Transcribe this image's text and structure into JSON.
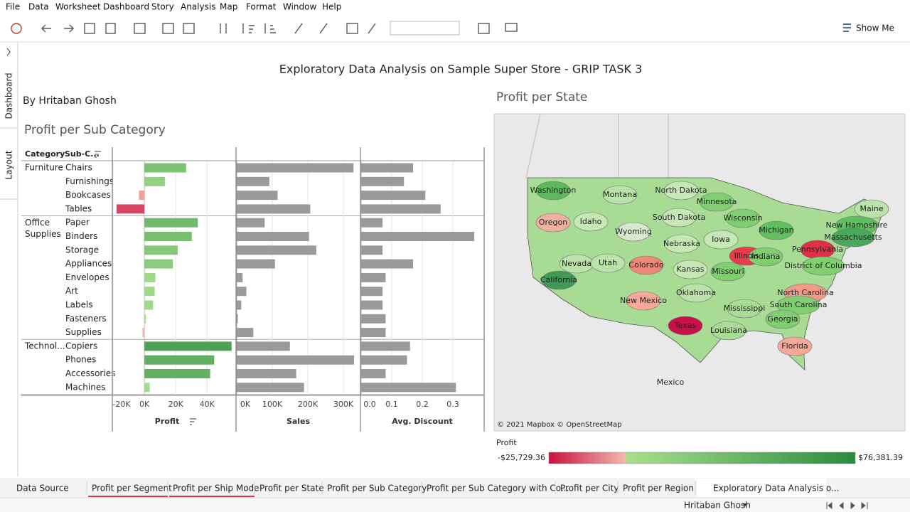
{
  "menu": [
    "File",
    "Data",
    "Worksheet",
    "Dashboard",
    "Story",
    "Analysis",
    "Map",
    "Format",
    "Window",
    "Help"
  ],
  "toolbar": {
    "show_me": "Show Me"
  },
  "side_tabs": [
    "Dashboard",
    "Layout"
  ],
  "dashboard": {
    "title": "Exploratory Data Analysis on Sample Super Store - GRIP TASK 3",
    "author": "By Hritaban Ghosh",
    "chart": {
      "type": "bar",
      "title": "Profit per Sub Category",
      "header": {
        "category": "Category",
        "sub_category": "Sub-C..."
      },
      "groups": [
        {
          "name": "Furniture",
          "sub_categories": [
            "Chairs",
            "Furnishings",
            "Bookcases",
            "Tables"
          ]
        },
        {
          "name": "Office Supplies",
          "sub_categories": [
            "Paper",
            "Binders",
            "Storage",
            "Appliances",
            "Envelopes",
            "Art",
            "Labels",
            "Fasteners",
            "Supplies"
          ]
        },
        {
          "name": "Technol...",
          "sub_categories": [
            "Copiers",
            "Phones",
            "Accessories",
            "Machines"
          ]
        }
      ],
      "series": [
        {
          "name": "Profit",
          "values": [
            26590,
            13059,
            -3473,
            -17725,
            34054,
            30222,
            21279,
            18138,
            6964,
            6528,
            5546,
            950,
            -1189,
            55618,
            44516,
            41937,
            3385
          ],
          "xlim": [
            -20000,
            58000
          ],
          "xticks": [
            {
              "value": -20000,
              "label": "-20K"
            },
            {
              "value": 0,
              "label": "0K"
            },
            {
              "value": 20000,
              "label": "20K"
            },
            {
              "value": 40000,
              "label": "40K"
            }
          ]
        },
        {
          "name": "Sales",
          "color": "#9a9a9a",
          "values": [
            328449,
            91705,
            114880,
            206966,
            78479,
            203413,
            223844,
            107532,
            16476,
            27119,
            12486,
            3024,
            46674,
            149528,
            330007,
            167380,
            189239
          ],
          "xlim": [
            0,
            346000
          ],
          "xticks": [
            {
              "value": 0,
              "label": "0K"
            },
            {
              "value": 100000,
              "label": "100K"
            },
            {
              "value": 200000,
              "label": "200K"
            },
            {
              "value": 300000,
              "label": "300K"
            }
          ]
        },
        {
          "name": "Avg. Discount",
          "color": "#9a9a9a",
          "values": [
            0.17,
            0.14,
            0.21,
            0.26,
            0.07,
            0.37,
            0.07,
            0.17,
            0.08,
            0.07,
            0.07,
            0.08,
            0.08,
            0.16,
            0.15,
            0.08,
            0.31
          ],
          "xlim": [
            0,
            0.4
          ],
          "xticks": [
            {
              "value": 0,
              "label": "0.0"
            },
            0.1,
            0.2,
            0.3
          ]
        }
      ],
      "grid": true
    },
    "map": {
      "title": "Profit per State",
      "attribution": "© 2021 Mapbox © OpenStreetMap",
      "other_labels": [
        "Mexico"
      ],
      "states": [
        {
          "name": "Washington",
          "color": "#5cb85c"
        },
        {
          "name": "Montana",
          "color": "#b9e3a8"
        },
        {
          "name": "North Dakota",
          "color": "#c5e8b5"
        },
        {
          "name": "Minnesota",
          "color": "#7fcf70"
        },
        {
          "name": "Oregon",
          "color": "#f0b0a0"
        },
        {
          "name": "Idaho",
          "color": "#c5e8b5"
        },
        {
          "name": "Wyoming",
          "color": "#d8e8d0"
        },
        {
          "name": "South Dakota",
          "color": "#c5e8b5"
        },
        {
          "name": "Wisconsin",
          "color": "#7fcf70"
        },
        {
          "name": "Michigan",
          "color": "#60c060"
        },
        {
          "name": "Maine",
          "color": "#b9e3a8"
        },
        {
          "name": "New Hampshire",
          "color": "#5fbf5f"
        },
        {
          "name": "Massachusetts",
          "color": "#4aa85a"
        },
        {
          "name": "Iowa",
          "color": "#c5e8b5"
        },
        {
          "name": "Nebraska",
          "color": "#c5e8b5"
        },
        {
          "name": "Illinois",
          "color": "#e83a4a"
        },
        {
          "name": "Indiana",
          "color": "#7fcf70"
        },
        {
          "name": "Pennsylvania",
          "color": "#e03045"
        },
        {
          "name": "Nevada",
          "color": "#b9e3a8"
        },
        {
          "name": "Utah",
          "color": "#b9e3a8"
        },
        {
          "name": "Colorado",
          "color": "#f08878"
        },
        {
          "name": "Kansas",
          "color": "#c5e8b5"
        },
        {
          "name": "Missouri",
          "color": "#7fcf70"
        },
        {
          "name": "District of Columbia",
          "color": "#7fcf70"
        },
        {
          "name": "California",
          "color": "#3f9a55"
        },
        {
          "name": "Oklahoma",
          "color": "#b9e3a8"
        },
        {
          "name": "North Carolina",
          "color": "#f09a88"
        },
        {
          "name": "New Mexico",
          "color": "#f4a898"
        },
        {
          "name": "Mississippi",
          "color": "#a8dc95"
        },
        {
          "name": "South Carolina",
          "color": "#7fcf70"
        },
        {
          "name": "Georgia",
          "color": "#7fcf70"
        },
        {
          "name": "Texas",
          "color": "#c8104a"
        },
        {
          "name": "Louisiana",
          "color": "#a8dc95"
        },
        {
          "name": "Florida",
          "color": "#f4a898"
        }
      ],
      "legend": {
        "title": "Profit",
        "min": {
          "value": -25729.36,
          "label": "-$25,729.36"
        },
        "max": {
          "value": 76381.39,
          "label": "$76,381.39"
        },
        "colors": [
          "#c9103e",
          "#f3b9b0",
          "#a9e08f",
          "#2b8a3e"
        ]
      }
    }
  },
  "sheet_tabs": [
    "Data Source",
    "Profit per Segment",
    "Profit per Ship Mode",
    "Profit per State",
    "Profit per Sub Category",
    "Profit per Sub Category with Co...",
    "Profit per City",
    "Profit per Region",
    "Exploratory Data Analysis o..."
  ],
  "status": {
    "user": "Hritaban Ghosh"
  }
}
